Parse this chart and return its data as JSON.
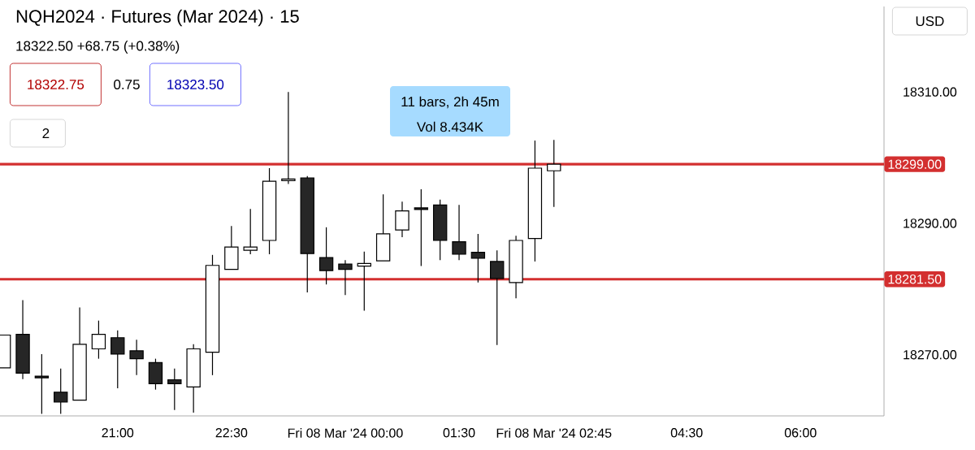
{
  "chart_data": {
    "type": "candlestick",
    "title": "NQH2024 · Futures (Mar 2024) · 15",
    "subtitle": "18322.50 +68.75 (+0.38%)",
    "annotations": [
      "18322.75",
      "0.75",
      "18323.50",
      "2",
      "USD",
      "11 bars, 2h 45m",
      "Vol 8.434K"
    ],
    "x": [
      "2024-03-07T19:30",
      "2024-03-07T19:45",
      "2024-03-07T20:00",
      "2024-03-07T20:15",
      "2024-03-07T20:30",
      "2024-03-07T20:45",
      "2024-03-07T21:00",
      "2024-03-07T21:15",
      "2024-03-07T21:30",
      "2024-03-07T21:45",
      "2024-03-07T22:00",
      "2024-03-07T22:15",
      "2024-03-07T22:30",
      "2024-03-07T22:45",
      "2024-03-07T23:00",
      "2024-03-07T23:15",
      "2024-03-07T23:30",
      "2024-03-07T23:45",
      "2024-03-08T00:00",
      "2024-03-08T00:15",
      "2024-03-08T00:30",
      "2024-03-08T00:45",
      "2024-03-08T01:00",
      "2024-03-08T01:15",
      "2024-03-08T01:30",
      "2024-03-08T01:45",
      "2024-03-08T02:00",
      "2024-03-08T02:15",
      "2024-03-08T02:30",
      "2024-03-08T02:45"
    ],
    "ohlc": [
      [
        18268.0,
        18273.0,
        18268.0,
        18273.0
      ],
      [
        18273.1,
        18278.3,
        18266.3,
        18267.2
      ],
      [
        18266.7,
        18270.1,
        18261,
        18266.5
      ],
      [
        18264.3,
        18267.9,
        18261,
        18262.8
      ],
      [
        18263.1,
        18277.2,
        18263.1,
        18271.6
      ],
      [
        18270.9,
        18275.2,
        18269.4,
        18273.1
      ],
      [
        18272.6,
        18273.7,
        18264.9,
        18270.1
      ],
      [
        18270.6,
        18272.3,
        18266.9,
        18269.4
      ],
      [
        18268.8,
        18269.4,
        18264.7,
        18265.6
      ],
      [
        18266.2,
        18267.9,
        18261.6,
        18265.6
      ],
      [
        18265.1,
        18271.6,
        18261.2,
        18270.9
      ],
      [
        18270.4,
        18285.2,
        18266.9,
        18283.6
      ],
      [
        18283.0,
        18289.6,
        18283.0,
        18286.4
      ],
      [
        18285.9,
        18292.2,
        18285.3,
        18286.4
      ],
      [
        18287.4,
        18298.4,
        18285.3,
        18296.4
      ],
      [
        18296.5,
        18310.0,
        18296.0,
        18296.6
      ],
      [
        18296.9,
        18297.2,
        18279.5,
        18285.4
      ],
      [
        18284.8,
        18289.4,
        18280.7,
        18282.8
      ],
      [
        18283.8,
        18284.4,
        18279.1,
        18283.0
      ],
      [
        18283.5,
        18285.7,
        18276.7,
        18283.9
      ],
      [
        18284.3,
        18294.4,
        18284.3,
        18288.4
      ],
      [
        18289.0,
        18293.3,
        18287.9,
        18291.9
      ],
      [
        18292.3,
        18295.2,
        18283.5,
        18292.1
      ],
      [
        18292.8,
        18293.6,
        18284.4,
        18287.4
      ],
      [
        18287.2,
        18292.8,
        18284.4,
        18285.3
      ],
      [
        18285.6,
        18288.4,
        18281.0,
        18284.7
      ],
      [
        18284.2,
        18285.9,
        18271.5,
        18281.6
      ],
      [
        18281.0,
        18288.1,
        18278.6,
        18287.4
      ],
      [
        18287.7,
        18302.6,
        18284.2,
        18298.4
      ],
      [
        18298.0,
        18302.7,
        18292.5,
        18299.0
      ]
    ],
    "xlim": [
      "2024-03-07T19:27",
      "2024-03-08T07:06"
    ],
    "xticks": [
      {
        "value": "2024-03-07T21:00",
        "label": "21:00"
      },
      {
        "value": "2024-03-07T22:30",
        "label": "22:30"
      },
      {
        "value": "2024-03-08T00:00",
        "label": "Fri 08 Mar '24  00:00"
      },
      {
        "value": "2024-03-08T01:30",
        "label": "01:30"
      },
      {
        "value": "2024-03-08T02:45",
        "label": "Fri 08 Mar '24  02:45"
      },
      {
        "value": "2024-03-08T04:30",
        "label": "04:30"
      },
      {
        "value": "2024-03-08T06:00",
        "label": "06:00"
      }
    ],
    "ylim": [
      18260.7,
      18323
    ],
    "yticks": [
      {
        "value": 18270,
        "label": "18270.00"
      },
      {
        "value": 18290,
        "label": "18290.00"
      },
      {
        "value": 18310,
        "label": "18310.00"
      }
    ],
    "ref_lines": [
      {
        "axis": "y",
        "value": 18299,
        "label": "18299.00",
        "color": "#d32f2f"
      },
      {
        "axis": "y",
        "value": 18281.5,
        "label": "18281.50",
        "color": "#d32f2f"
      }
    ],
    "grid": false
  }
}
